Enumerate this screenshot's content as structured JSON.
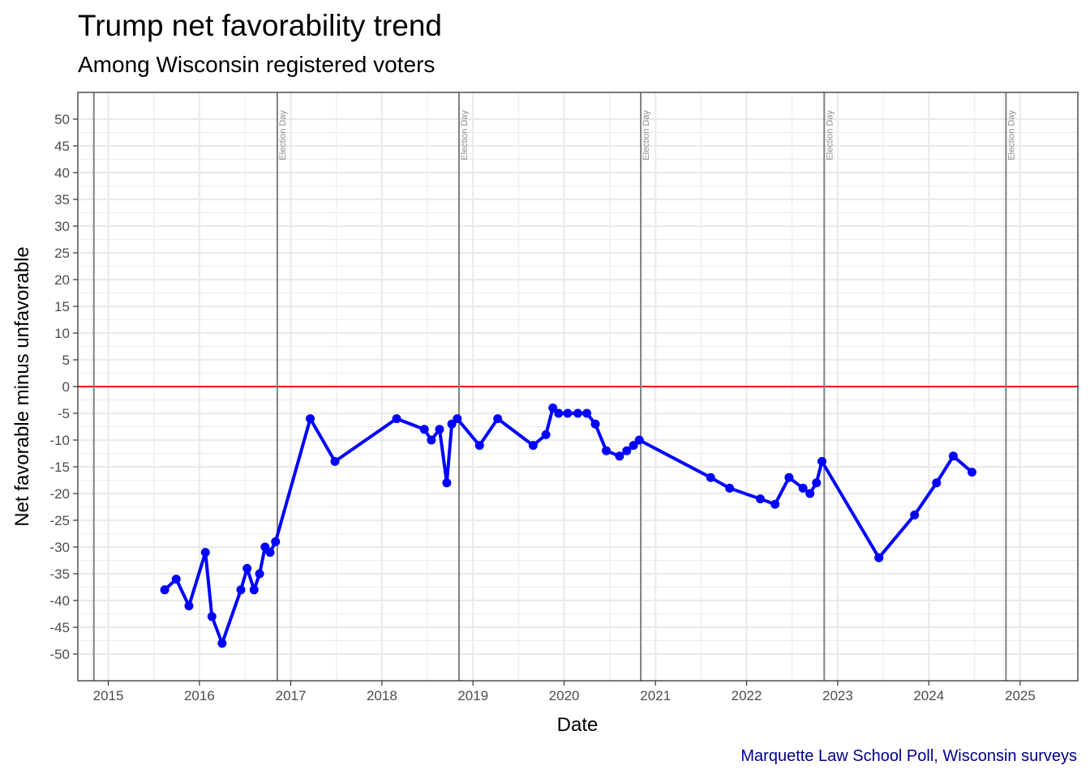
{
  "chart_data": {
    "type": "line",
    "title": "Trump net favorability trend",
    "subtitle": "Among Wisconsin registered voters",
    "caption": "Marquette Law School Poll, Wisconsin surveys",
    "xlabel": "Date",
    "ylabel": "Net favorable minus unfavorable",
    "xlim": [
      "2014-09-01",
      "2025-08-20"
    ],
    "ylim": [
      -55,
      55
    ],
    "x_ticks": [
      {
        "date": "2015-01-01",
        "label": "2015"
      },
      {
        "date": "2016-01-01",
        "label": "2016"
      },
      {
        "date": "2017-01-01",
        "label": "2017"
      },
      {
        "date": "2018-01-01",
        "label": "2018"
      },
      {
        "date": "2019-01-01",
        "label": "2019"
      },
      {
        "date": "2020-01-01",
        "label": "2020"
      },
      {
        "date": "2021-01-01",
        "label": "2021"
      },
      {
        "date": "2022-01-01",
        "label": "2022"
      },
      {
        "date": "2023-01-01",
        "label": "2023"
      },
      {
        "date": "2024-01-01",
        "label": "2024"
      },
      {
        "date": "2025-01-01",
        "label": "2025"
      }
    ],
    "y_ticks": [
      -50,
      -45,
      -40,
      -35,
      -30,
      -25,
      -20,
      -15,
      -10,
      -5,
      0,
      5,
      10,
      15,
      20,
      25,
      30,
      35,
      40,
      45,
      50
    ],
    "grid": true,
    "reference_line": {
      "y": 0,
      "color": "#ff0000"
    },
    "election_days": [
      {
        "date": "2014-11-04",
        "label": ""
      },
      {
        "date": "2016-11-08",
        "label": "Election Day"
      },
      {
        "date": "2018-11-06",
        "label": "Election Day"
      },
      {
        "date": "2020-11-03",
        "label": "Election Day"
      },
      {
        "date": "2022-11-08",
        "label": "Election Day"
      },
      {
        "date": "2024-11-05",
        "label": "Election Day"
      }
    ],
    "colors": {
      "series": "#0000ff",
      "reference": "#ff0000",
      "election": "#808080",
      "caption": "#00008b"
    },
    "series": [
      {
        "points": [
          {
            "x": "2015-08-15",
            "y": -38
          },
          {
            "x": "2015-09-30",
            "y": -36
          },
          {
            "x": "2015-11-20",
            "y": -41
          },
          {
            "x": "2016-01-25",
            "y": -31
          },
          {
            "x": "2016-02-20",
            "y": -43
          },
          {
            "x": "2016-04-01",
            "y": -48
          },
          {
            "x": "2016-06-15",
            "y": -38
          },
          {
            "x": "2016-07-10",
            "y": -34
          },
          {
            "x": "2016-08-07",
            "y": -38
          },
          {
            "x": "2016-08-29",
            "y": -35
          },
          {
            "x": "2016-09-20",
            "y": -30
          },
          {
            "x": "2016-10-10",
            "y": -31
          },
          {
            "x": "2016-11-01",
            "y": -29
          },
          {
            "x": "2017-03-20",
            "y": -6
          },
          {
            "x": "2017-06-27",
            "y": -14
          },
          {
            "x": "2018-03-01",
            "y": -6
          },
          {
            "x": "2018-06-20",
            "y": -8
          },
          {
            "x": "2018-07-18",
            "y": -10
          },
          {
            "x": "2018-08-20",
            "y": -8
          },
          {
            "x": "2018-09-18",
            "y": -18
          },
          {
            "x": "2018-10-08",
            "y": -7
          },
          {
            "x": "2018-10-30",
            "y": -6
          },
          {
            "x": "2019-01-27",
            "y": -11
          },
          {
            "x": "2019-04-10",
            "y": -6
          },
          {
            "x": "2019-08-30",
            "y": -11
          },
          {
            "x": "2019-10-20",
            "y": -9
          },
          {
            "x": "2019-11-17",
            "y": -4
          },
          {
            "x": "2019-12-10",
            "y": -5
          },
          {
            "x": "2020-01-15",
            "y": -5
          },
          {
            "x": "2020-02-25",
            "y": -5
          },
          {
            "x": "2020-04-01",
            "y": -5
          },
          {
            "x": "2020-05-05",
            "y": -7
          },
          {
            "x": "2020-06-18",
            "y": -12
          },
          {
            "x": "2020-08-10",
            "y": -13
          },
          {
            "x": "2020-09-08",
            "y": -12
          },
          {
            "x": "2020-10-05",
            "y": -11
          },
          {
            "x": "2020-10-28",
            "y": -10
          },
          {
            "x": "2021-08-10",
            "y": -17
          },
          {
            "x": "2021-10-25",
            "y": -19
          },
          {
            "x": "2022-02-25",
            "y": -21
          },
          {
            "x": "2022-04-25",
            "y": -22
          },
          {
            "x": "2022-06-20",
            "y": -17
          },
          {
            "x": "2022-08-15",
            "y": -19
          },
          {
            "x": "2022-09-12",
            "y": -20
          },
          {
            "x": "2022-10-08",
            "y": -18
          },
          {
            "x": "2022-10-30",
            "y": -14
          },
          {
            "x": "2023-06-15",
            "y": -32
          },
          {
            "x": "2023-11-05",
            "y": -24
          },
          {
            "x": "2024-02-01",
            "y": -18
          },
          {
            "x": "2024-04-08",
            "y": -13
          },
          {
            "x": "2024-06-22",
            "y": -16
          }
        ]
      }
    ]
  }
}
